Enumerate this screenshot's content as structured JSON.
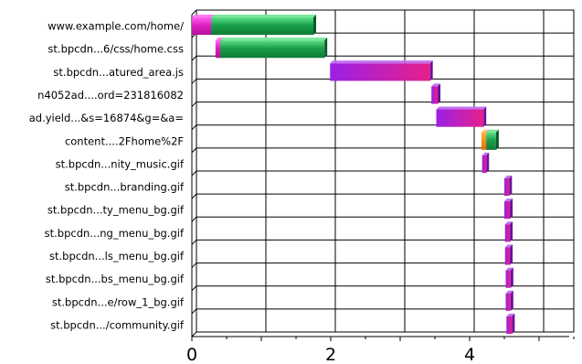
{
  "chart_data": {
    "type": "bar",
    "orientation": "horizontal-waterfall",
    "title": "",
    "xlabel": "",
    "ylabel": "",
    "xlim": [
      0,
      5.5
    ],
    "x_ticks": [
      0,
      2,
      4
    ],
    "x_tick_labels": [
      "0",
      "2",
      "4"
    ],
    "grid": true,
    "colors": {
      "dns": "#e020c0",
      "connect": "#1aa04a",
      "download": "#9a20e6",
      "download_end": "#e6208a",
      "ssl": "#ff8c00"
    },
    "rows": [
      {
        "label": "www.example.com/home/",
        "segments": [
          {
            "phase": "dns",
            "start": 0.0,
            "end": 0.28
          },
          {
            "phase": "connect",
            "start": 0.28,
            "end": 1.75
          }
        ]
      },
      {
        "label": "st.bpcdn...6/css/home.css",
        "segments": [
          {
            "phase": "dns",
            "start": 0.34,
            "end": 0.41
          },
          {
            "phase": "connect",
            "start": 0.41,
            "end": 1.91
          }
        ]
      },
      {
        "label": "st.bpcdn...atured_area.js",
        "segments": [
          {
            "phase": "download",
            "start": 1.99,
            "end": 3.43
          }
        ]
      },
      {
        "label": "n4052ad....ord=231816082",
        "segments": [
          {
            "phase": "download",
            "start": 3.45,
            "end": 3.54
          }
        ]
      },
      {
        "label": "ad.yield...&s=16874&g=&a=",
        "segments": [
          {
            "phase": "download",
            "start": 3.52,
            "end": 4.2
          }
        ]
      },
      {
        "label": "content....2Fhome%2F",
        "segments": [
          {
            "phase": "ssl",
            "start": 4.17,
            "end": 4.24
          },
          {
            "phase": "connect",
            "start": 4.24,
            "end": 4.38
          }
        ]
      },
      {
        "label": "st.bpcdn...nity_music.gif",
        "segments": [
          {
            "phase": "download",
            "start": 4.18,
            "end": 4.24
          }
        ]
      },
      {
        "label": "st.bpcdn...branding.gif",
        "segments": [
          {
            "phase": "download",
            "start": 4.5,
            "end": 4.57
          }
        ]
      },
      {
        "label": "st.bpcdn...ty_menu_bg.gif",
        "segments": [
          {
            "phase": "download",
            "start": 4.5,
            "end": 4.58
          }
        ]
      },
      {
        "label": "st.bpcdn...ng_menu_bg.gif",
        "segments": [
          {
            "phase": "download",
            "start": 4.51,
            "end": 4.58
          }
        ]
      },
      {
        "label": "st.bpcdn...ls_menu_bg.gif",
        "segments": [
          {
            "phase": "download",
            "start": 4.51,
            "end": 4.58
          }
        ]
      },
      {
        "label": "st.bpcdn...bs_menu_bg.gif",
        "segments": [
          {
            "phase": "download",
            "start": 4.52,
            "end": 4.59
          }
        ]
      },
      {
        "label": "st.bpcdn...e/row_1_bg.gif",
        "segments": [
          {
            "phase": "download",
            "start": 4.52,
            "end": 4.59
          }
        ]
      },
      {
        "label": "st.bpcdn.../community.gif",
        "segments": [
          {
            "phase": "download",
            "start": 4.53,
            "end": 4.61
          }
        ]
      }
    ]
  }
}
